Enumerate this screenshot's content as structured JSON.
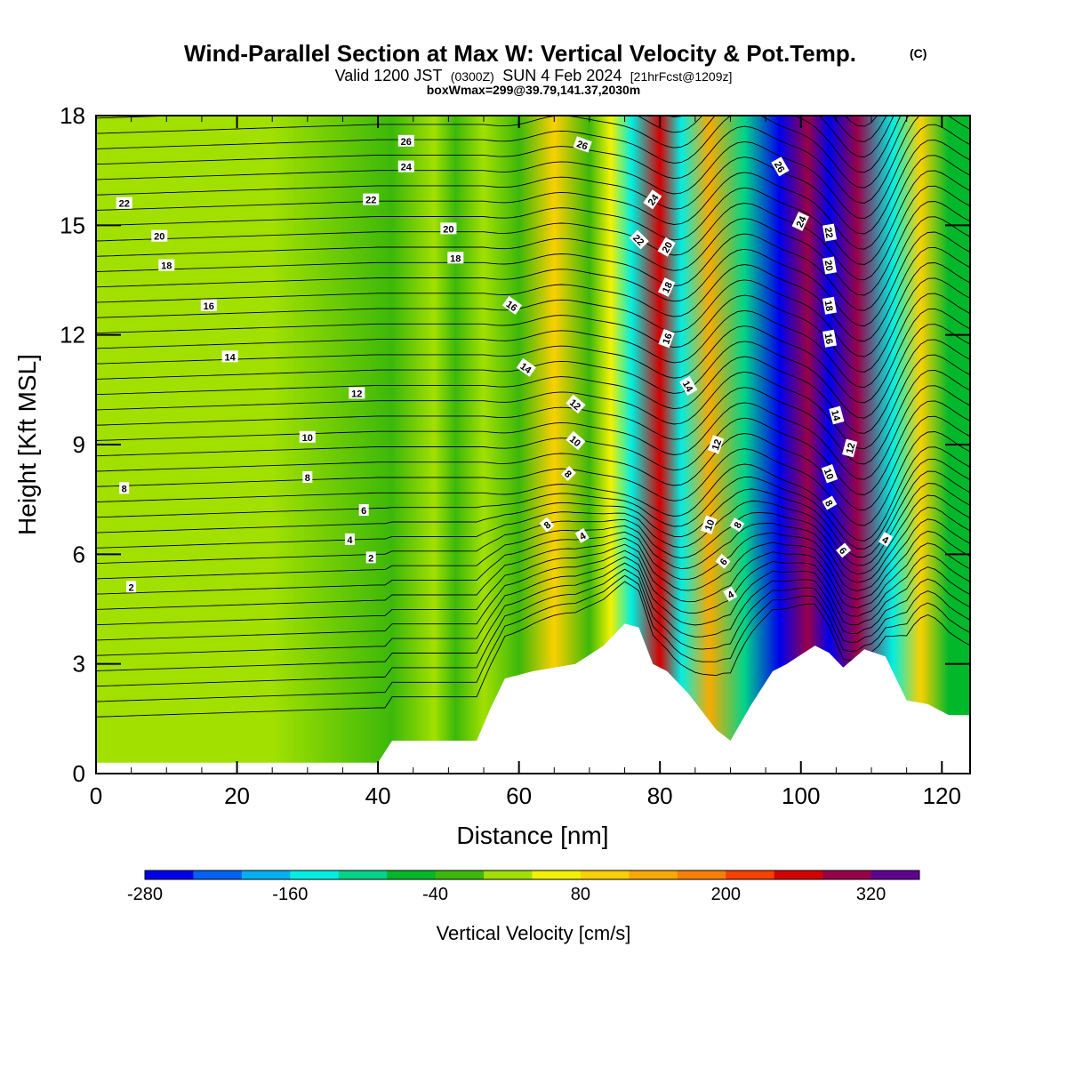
{
  "chart_data": {
    "type": "heatmap",
    "title": "Wind-Parallel Section at Max W: Vertical Velocity & Pot.Temp.",
    "title_mark": "(C)",
    "subtitle_parts": {
      "a": "Valid 1200 JST",
      "b": "(0300Z)",
      "c": "SUN 4 Feb 2024",
      "d": "[21hrFcst@1209z]"
    },
    "subtitle2": "boxWmax=299@39.79,141.37,2030m",
    "xlabel": "Distance [nm]",
    "ylabel": "Height [Kft MSL]",
    "xlim": [
      0,
      124
    ],
    "ylim": [
      0,
      18
    ],
    "x_ticks": [
      "0",
      "20",
      "40",
      "60",
      "80",
      "100",
      "120"
    ],
    "y_ticks": [
      "0",
      "3",
      "6",
      "9",
      "12",
      "15",
      "18"
    ],
    "colorbar": {
      "title": "Vertical Velocity [cm/s]",
      "colors": [
        "#0000ee",
        "#0062f2",
        "#00b0f2",
        "#00eee2",
        "#00d48a",
        "#00b82a",
        "#3cb80a",
        "#a2e000",
        "#f2f200",
        "#fad000",
        "#f8aa00",
        "#f88000",
        "#f84000",
        "#d60000",
        "#9a0048",
        "#600090"
      ],
      "tick_labels": [
        "-280",
        "-160",
        "-40",
        "80",
        "200",
        "320"
      ]
    },
    "vertical_velocity_bands": [
      {
        "x": 3,
        "w": 0
      },
      {
        "x": 25,
        "w": 0
      },
      {
        "x": 42,
        "w": -25
      },
      {
        "x": 48,
        "w": 20
      },
      {
        "x": 51,
        "w": -30
      },
      {
        "x": 55,
        "w": 15
      },
      {
        "x": 60,
        "w": -35
      },
      {
        "x": 65,
        "w": 80
      },
      {
        "x": 70,
        "w": -40
      },
      {
        "x": 73,
        "w": 50
      },
      {
        "x": 76,
        "w": -150
      },
      {
        "x": 80,
        "w": 250
      },
      {
        "x": 83,
        "w": -160
      },
      {
        "x": 87,
        "w": 140
      },
      {
        "x": 92,
        "w": -120
      },
      {
        "x": 97,
        "w": -290
      },
      {
        "x": 101,
        "w": 300
      },
      {
        "x": 104,
        "w": -280
      },
      {
        "x": 108,
        "w": 280
      },
      {
        "x": 113,
        "w": -140
      },
      {
        "x": 117,
        "w": 110
      },
      {
        "x": 121,
        "w": -60
      }
    ],
    "terrain": [
      {
        "x": 0,
        "h": 0.3
      },
      {
        "x": 40,
        "h": 0.3
      },
      {
        "x": 42,
        "h": 0.9
      },
      {
        "x": 46,
        "h": 0.9
      },
      {
        "x": 54,
        "h": 0.9
      },
      {
        "x": 56,
        "h": 1.8
      },
      {
        "x": 58,
        "h": 2.6
      },
      {
        "x": 62,
        "h": 2.8
      },
      {
        "x": 68,
        "h": 3.0
      },
      {
        "x": 72,
        "h": 3.5
      },
      {
        "x": 75,
        "h": 4.1
      },
      {
        "x": 77,
        "h": 4.0
      },
      {
        "x": 79,
        "h": 3.0
      },
      {
        "x": 81,
        "h": 2.8
      },
      {
        "x": 84,
        "h": 2.2
      },
      {
        "x": 88,
        "h": 1.2
      },
      {
        "x": 90,
        "h": 0.9
      },
      {
        "x": 93,
        "h": 1.9
      },
      {
        "x": 96,
        "h": 2.8
      },
      {
        "x": 98,
        "h": 3.0
      },
      {
        "x": 102,
        "h": 3.5
      },
      {
        "x": 104,
        "h": 3.3
      },
      {
        "x": 106,
        "h": 2.9
      },
      {
        "x": 109,
        "h": 3.4
      },
      {
        "x": 112,
        "h": 3.2
      },
      {
        "x": 115,
        "h": 2.0
      },
      {
        "x": 118,
        "h": 1.9
      },
      {
        "x": 121,
        "h": 1.6
      },
      {
        "x": 124,
        "h": 1.6
      }
    ],
    "theta_contour_labels": [
      {
        "x": 44,
        "y": 17.3,
        "text": "26",
        "rot": 0
      },
      {
        "x": 44,
        "y": 16.6,
        "text": "24",
        "rot": 0
      },
      {
        "x": 4,
        "y": 15.6,
        "text": "22",
        "rot": 0
      },
      {
        "x": 39,
        "y": 15.7,
        "text": "22",
        "rot": 0
      },
      {
        "x": 9,
        "y": 14.7,
        "text": "20",
        "rot": 0
      },
      {
        "x": 50,
        "y": 14.9,
        "text": "20",
        "rot": 0
      },
      {
        "x": 10,
        "y": 13.9,
        "text": "18",
        "rot": 0
      },
      {
        "x": 51,
        "y": 14.1,
        "text": "18",
        "rot": 0
      },
      {
        "x": 16,
        "y": 12.8,
        "text": "16",
        "rot": 0
      },
      {
        "x": 19,
        "y": 11.4,
        "text": "14",
        "rot": 0
      },
      {
        "x": 37,
        "y": 10.4,
        "text": "12",
        "rot": 0
      },
      {
        "x": 30,
        "y": 9.2,
        "text": "10",
        "rot": 0
      },
      {
        "x": 30,
        "y": 8.1,
        "text": "8",
        "rot": 0
      },
      {
        "x": 4,
        "y": 7.8,
        "text": "8",
        "rot": 0
      },
      {
        "x": 38,
        "y": 7.2,
        "text": "6",
        "rot": 0
      },
      {
        "x": 36,
        "y": 6.4,
        "text": "4",
        "rot": 0
      },
      {
        "x": 39,
        "y": 5.9,
        "text": "2",
        "rot": 0
      },
      {
        "x": 5,
        "y": 5.1,
        "text": "2",
        "rot": 0
      },
      {
        "x": 69,
        "y": 17.2,
        "text": "26",
        "rot": 20
      },
      {
        "x": 59,
        "y": 12.8,
        "text": "16",
        "rot": 35
      },
      {
        "x": 61,
        "y": 11.1,
        "text": "14",
        "rot": 35
      },
      {
        "x": 68,
        "y": 10.1,
        "text": "12",
        "rot": 40
      },
      {
        "x": 68,
        "y": 9.1,
        "text": "10",
        "rot": 40
      },
      {
        "x": 67,
        "y": 8.2,
        "text": "8",
        "rot": 45
      },
      {
        "x": 64,
        "y": 6.8,
        "text": "8",
        "rot": -40
      },
      {
        "x": 69,
        "y": 6.5,
        "text": "4",
        "rot": -30
      },
      {
        "x": 79,
        "y": 15.7,
        "text": "24",
        "rot": -55
      },
      {
        "x": 77,
        "y": 14.6,
        "text": "22",
        "rot": 45
      },
      {
        "x": 81,
        "y": 14.4,
        "text": "20",
        "rot": -60
      },
      {
        "x": 81,
        "y": 13.3,
        "text": "18",
        "rot": -65
      },
      {
        "x": 81,
        "y": 11.9,
        "text": "16",
        "rot": -70
      },
      {
        "x": 84,
        "y": 10.6,
        "text": "14",
        "rot": 60
      },
      {
        "x": 88,
        "y": 9.0,
        "text": "12",
        "rot": -70
      },
      {
        "x": 87,
        "y": 6.8,
        "text": "10",
        "rot": -70
      },
      {
        "x": 91,
        "y": 6.8,
        "text": "8",
        "rot": -60
      },
      {
        "x": 89,
        "y": 5.8,
        "text": "6",
        "rot": -50
      },
      {
        "x": 90,
        "y": 4.9,
        "text": "4",
        "rot": -30
      },
      {
        "x": 97,
        "y": 16.6,
        "text": "26",
        "rot": 60
      },
      {
        "x": 100,
        "y": 15.1,
        "text": "24",
        "rot": -65
      },
      {
        "x": 104,
        "y": 14.8,
        "text": "22",
        "rot": 80
      },
      {
        "x": 104,
        "y": 13.9,
        "text": "20",
        "rot": 80
      },
      {
        "x": 104,
        "y": 12.8,
        "text": "18",
        "rot": 80
      },
      {
        "x": 104,
        "y": 11.9,
        "text": "16",
        "rot": 80
      },
      {
        "x": 105,
        "y": 9.8,
        "text": "14",
        "rot": 75
      },
      {
        "x": 107,
        "y": 8.9,
        "text": "12",
        "rot": -75
      },
      {
        "x": 104,
        "y": 8.2,
        "text": "10",
        "rot": 70
      },
      {
        "x": 104,
        "y": 7.4,
        "text": "8",
        "rot": 60
      },
      {
        "x": 106,
        "y": 6.1,
        "text": "6",
        "rot": 50
      },
      {
        "x": 112,
        "y": 6.4,
        "text": "4",
        "rot": 30
      }
    ]
  }
}
